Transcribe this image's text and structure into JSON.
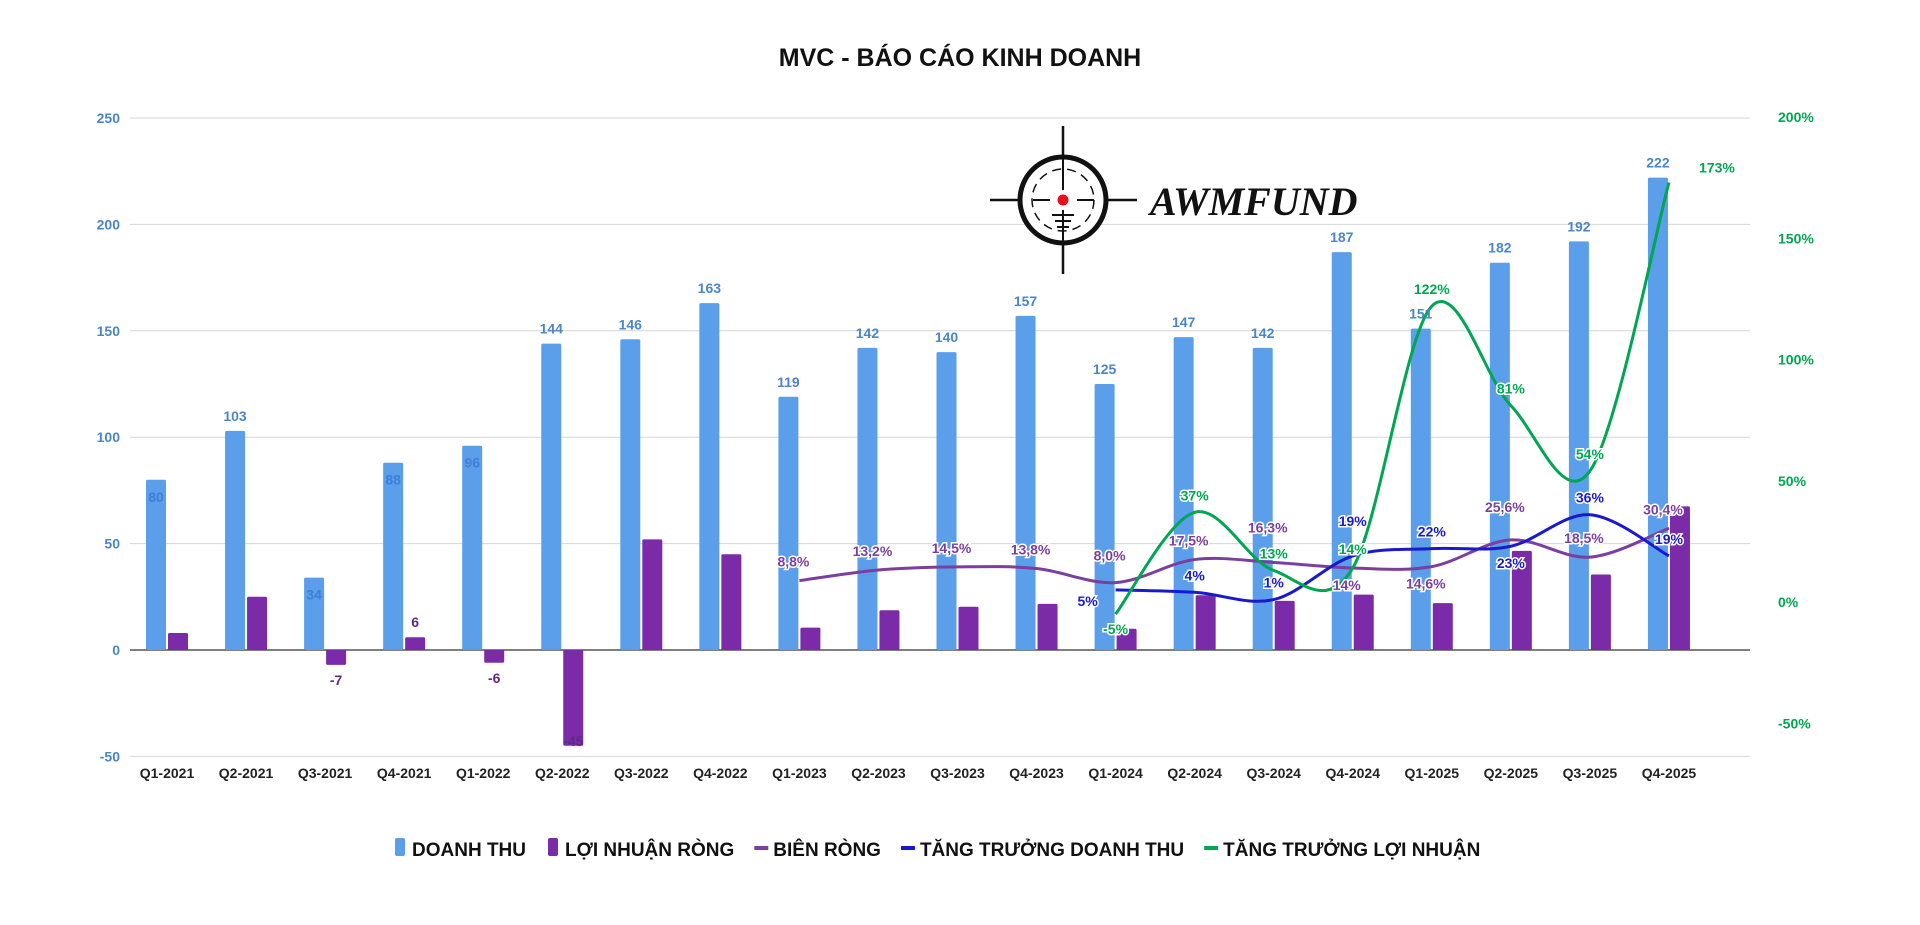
{
  "chart_data": {
    "type": "bar",
    "title": "MVC - BÁO CÁO KINH DOANH",
    "watermark": "AWMFUND",
    "categories": [
      "Q1-2021",
      "Q2-2021",
      "Q3-2021",
      "Q4-2021",
      "Q1-2022",
      "Q2-2022",
      "Q3-2022",
      "Q4-2022",
      "Q1-2023",
      "Q2-2023",
      "Q3-2023",
      "Q4-2023",
      "Q1-2024",
      "Q2-2024",
      "Q3-2024",
      "Q4-2024",
      "Q1-2025",
      "Q2-2025",
      "Q3-2025",
      "Q4-2025"
    ],
    "left_axis": {
      "ylim": [
        -50,
        250
      ],
      "ticks": [
        "-50",
        "0",
        "50",
        "100",
        "150",
        "200",
        "250"
      ],
      "color": "#4a86c8"
    },
    "right_axis": {
      "ylim": [
        -50,
        200
      ],
      "ticks": [
        "-50%",
        "0%",
        "50%",
        "100%",
        "150%",
        "200%"
      ],
      "color": "#00a651"
    },
    "grid": true,
    "legend_position": "bottom",
    "series": [
      {
        "name": "DOANH THU",
        "kind": "bar",
        "axis": "left",
        "color": "#5b9ee9",
        "values": [
          80,
          103,
          34,
          88,
          96,
          144,
          146,
          163,
          119,
          142,
          140,
          157,
          125,
          147,
          142,
          187,
          151,
          182,
          192,
          222
        ],
        "labels": [
          "80",
          "103",
          "34",
          "88",
          "96",
          "144",
          "146",
          "163",
          "119",
          "142",
          "140",
          "157",
          "125",
          "147",
          "142",
          "187",
          "151",
          "182",
          "192",
          "222"
        ]
      },
      {
        "name": "LỢI NHUẬN RÒNG",
        "kind": "bar",
        "axis": "left",
        "color": "#7b2aa8",
        "values": [
          8,
          25,
          -7,
          6,
          -6,
          -45,
          52,
          45,
          10.5,
          18.7,
          20.3,
          21.7,
          10,
          25.7,
          23.1,
          26,
          22,
          46.6,
          35.5,
          67.5
        ],
        "labels": [
          null,
          null,
          "-7",
          "6",
          "-6",
          "-45",
          null,
          null,
          null,
          null,
          null,
          null,
          null,
          null,
          null,
          null,
          null,
          null,
          null,
          null
        ]
      },
      {
        "name": "BIÊN RÒNG",
        "kind": "line",
        "axis": "right",
        "color": "#7b3fa0",
        "values": [
          null,
          null,
          null,
          null,
          null,
          null,
          null,
          null,
          8.8,
          13.2,
          14.5,
          13.8,
          8.0,
          17.5,
          16.3,
          14,
          14.6,
          25.6,
          18.5,
          30.4
        ],
        "labels": [
          null,
          null,
          null,
          null,
          null,
          null,
          null,
          null,
          "8,8%",
          "13,2%",
          "14,5%",
          "13,8%",
          "8,0%",
          "17,5%",
          "16,3%",
          "14%",
          "14,6%",
          "25,6%",
          "18,5%",
          "30,4%"
        ]
      },
      {
        "name": "TĂNG TRƯỞNG DOANH THU",
        "kind": "line",
        "axis": "right",
        "color": "#1a1acc",
        "values": [
          null,
          null,
          null,
          null,
          null,
          null,
          null,
          null,
          null,
          null,
          null,
          null,
          5,
          4,
          1,
          19,
          22,
          23,
          36,
          19
        ],
        "labels": [
          null,
          null,
          null,
          null,
          null,
          null,
          null,
          null,
          null,
          null,
          null,
          null,
          "5%",
          "4%",
          "1%",
          "19%",
          "22%",
          "23%",
          "36%",
          "19%"
        ]
      },
      {
        "name": "TĂNG TRƯỞNG LỢI NHUẬN",
        "kind": "line",
        "axis": "right",
        "color": "#00a651",
        "values": [
          null,
          null,
          null,
          null,
          null,
          null,
          null,
          null,
          null,
          null,
          null,
          null,
          -5,
          37,
          13,
          14,
          122,
          81,
          54,
          173
        ],
        "labels": [
          null,
          null,
          null,
          null,
          null,
          null,
          null,
          null,
          null,
          null,
          null,
          null,
          "-5%",
          "37%",
          "13%",
          "14%",
          "122%",
          "81%",
          "54%",
          "173%"
        ]
      }
    ]
  }
}
